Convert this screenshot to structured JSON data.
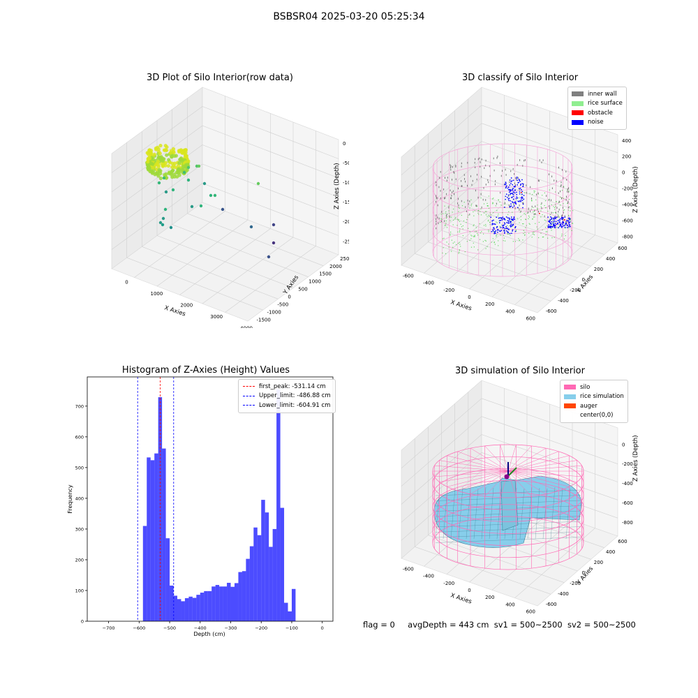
{
  "figure": {
    "suptitle": "BSBSR04 2025-03-20 05:25:34"
  },
  "panels": {
    "raw": {
      "title": "3D Plot of Silo Interior(row data)",
      "xlabel": "X Axies",
      "ylabel": "Y Axies",
      "zlabel": "Z Axies (Depth)",
      "x_ticks": [
        "0",
        "1000",
        "2000",
        "3000",
        "4000"
      ],
      "y_ticks": [
        "-1500",
        "-1000",
        "-500",
        "0",
        "500",
        "1000",
        "1500",
        "2000",
        "2500"
      ],
      "z_ticks": [
        "0",
        "-500",
        "-1000",
        "-1500",
        "-2000",
        "-2500"
      ]
    },
    "classify": {
      "title": "3D classify of Silo Interior",
      "xlabel": "X Axies",
      "ylabel": "Y Axies",
      "zlabel": "Z Axies (Depth)",
      "x_ticks": [
        "-600",
        "-400",
        "-200",
        "0",
        "200",
        "400",
        "600"
      ],
      "y_ticks": [
        "-600",
        "-400",
        "-200",
        "0",
        "200",
        "400",
        "600"
      ],
      "z_ticks": [
        "400",
        "200",
        "0",
        "-200",
        "-400",
        "-600",
        "-800"
      ],
      "legend": [
        {
          "label": "inner wall",
          "color": "#808080"
        },
        {
          "label": "rice surface",
          "color": "#90ee90"
        },
        {
          "label": "obstacle",
          "color": "#ff0000"
        },
        {
          "label": "noise",
          "color": "#0000ff"
        }
      ]
    },
    "simulation": {
      "title": "3D simulation of Silo Interior",
      "xlabel": "X Axies",
      "ylabel": "Y Axies",
      "zlabel": "Z Axies (Depth)",
      "x_ticks": [
        "-600",
        "-400",
        "-200",
        "0",
        "200",
        "400",
        "600"
      ],
      "y_ticks": [
        "-600",
        "-400",
        "-200",
        "0",
        "200",
        "400",
        "600"
      ],
      "z_ticks": [
        "0",
        "-200",
        "-400",
        "-600",
        "-800"
      ],
      "legend": [
        {
          "label": "silo",
          "color": "#ff69b4"
        },
        {
          "label": "rice simulation",
          "color": "#87ceeb"
        },
        {
          "label": "auger",
          "color": "#ff4500"
        },
        {
          "label": "center(0,0)",
          "color": ""
        }
      ]
    }
  },
  "chart_data": [
    {
      "type": "scatter",
      "title": "3D Plot of Silo Interior(row data)",
      "xlabel": "X Axies",
      "ylabel": "Y Axies",
      "zlabel": "Z Axies (Depth)",
      "xlim": [
        -500,
        4000
      ],
      "ylim": [
        -1500,
        2500
      ],
      "zlim": [
        -2700,
        0
      ],
      "colormap": "viridis",
      "description_of_points": "dense ring of points near origin plus scattered outliers"
    },
    {
      "type": "scatter",
      "title": "3D classify of Silo Interior",
      "xlabel": "X Axies",
      "ylabel": "Y Axies",
      "zlabel": "Z Axies (Depth)",
      "xlim": [
        -650,
        650
      ],
      "ylim": [
        -650,
        650
      ],
      "zlim": [
        -900,
        400
      ],
      "series": [
        {
          "name": "inner wall",
          "color": "#808080"
        },
        {
          "name": "rice surface",
          "color": "#90ee90"
        },
        {
          "name": "obstacle",
          "color": "#ff0000"
        },
        {
          "name": "noise",
          "color": "#0000ff"
        }
      ]
    },
    {
      "type": "bar",
      "title": "Histogram of Z-Axies (Height) Values",
      "xlabel": "Depth (cm)",
      "ylabel": "Frequency",
      "xlim": [
        -770,
        35
      ],
      "ylim": [
        0,
        795
      ],
      "x_ticks": [
        -700,
        -600,
        -500,
        -400,
        -300,
        -200,
        -100,
        0
      ],
      "y_ticks": [
        0,
        100,
        200,
        300,
        400,
        500,
        600,
        700
      ],
      "bin_width": 12.5,
      "bin_start": -587.5,
      "values": [
        310,
        533,
        524,
        546,
        729,
        562,
        270,
        116,
        83,
        72,
        65,
        75,
        80,
        76,
        86,
        93,
        98,
        98,
        113,
        118,
        113,
        113,
        125,
        112,
        124,
        160,
        163,
        203,
        244,
        305,
        280,
        395,
        354,
        242,
        300,
        755,
        369,
        60,
        32,
        105
      ],
      "color": "#0000ff",
      "vlines": [
        {
          "label": "first_peak: -531.14 cm",
          "x": -531.14,
          "color": "#ff0000"
        },
        {
          "label": "Upper_limit: -486.88 cm",
          "x": -486.88,
          "color": "#0000ff"
        },
        {
          "label": "Lower_limit: -604.91 cm",
          "x": -604.91,
          "color": "#0000ff"
        }
      ]
    },
    {
      "type": "surface",
      "title": "3D simulation of Silo Interior",
      "xlabel": "X Axies",
      "ylabel": "Y Axies",
      "zlabel": "Z Axies (Depth)",
      "xlim": [
        -650,
        650
      ],
      "ylim": [
        -650,
        650
      ],
      "zlim": [
        -900,
        350
      ],
      "series": [
        {
          "name": "silo",
          "color": "#ff69b4"
        },
        {
          "name": "rice simulation",
          "color": "#87ceeb"
        },
        {
          "name": "auger",
          "color": "#ff4500"
        },
        {
          "name": "center(0,0)",
          "color": ""
        }
      ]
    }
  ],
  "status": {
    "flag": "flag = 0",
    "avg_depth": "avgDepth = 443 cm",
    "sv1": "sv1 = 500~2500",
    "sv2": "sv2 = 500~2500"
  }
}
